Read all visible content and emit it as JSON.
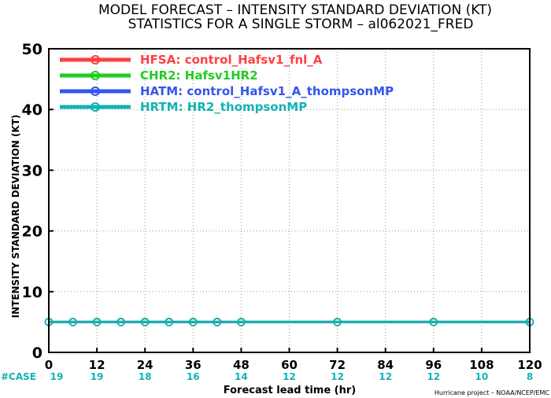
{
  "chart_data": {
    "type": "line",
    "title_line1": "MODEL FORECAST – INTENSITY STANDARD DEVIATION (KT)",
    "title_line2": "STATISTICS FOR A SINGLE STORM – al062021_FRED",
    "xlabel": "Forecast lead time (hr)",
    "ylabel": "INTENSITY STANDARD DEVIATION (KT)",
    "xlim": [
      0,
      120
    ],
    "ylim": [
      0,
      50
    ],
    "x_ticks": [
      0,
      12,
      24,
      36,
      48,
      60,
      72,
      84,
      96,
      108,
      120
    ],
    "y_ticks": [
      0,
      10,
      20,
      30,
      40,
      50
    ],
    "grid": true,
    "legend_position": "top-left",
    "series": [
      {
        "name": "HFSA: control_Hafsv1_fnl_A",
        "color": "#ff4040",
        "x": [
          0,
          6,
          12,
          18,
          24,
          30,
          36,
          42,
          48,
          72,
          96,
          120
        ],
        "values": [
          5,
          5,
          5,
          5,
          5,
          5,
          5,
          5,
          5,
          5,
          5,
          5
        ]
      },
      {
        "name": "CHR2: Hafsv1HR2",
        "color": "#22cc22",
        "x": [
          0,
          6,
          12,
          18,
          24,
          30,
          36,
          42,
          48,
          72,
          96,
          120
        ],
        "values": [
          5,
          5,
          5,
          5,
          5,
          5,
          5,
          5,
          5,
          5,
          5,
          5
        ]
      },
      {
        "name": "HATM: control_Hafsv1_A_thompsonMP",
        "color": "#3355ee",
        "x": [
          0,
          6,
          12,
          18,
          24,
          30,
          36,
          42,
          48,
          72,
          96,
          120
        ],
        "values": [
          5,
          5,
          5,
          5,
          5,
          5,
          5,
          5,
          5,
          5,
          5,
          5
        ]
      },
      {
        "name": "HRTM: HR2_thompsonMP",
        "color": "#11b3b3",
        "x": [
          0,
          6,
          12,
          18,
          24,
          30,
          36,
          42,
          48,
          72,
          96,
          120
        ],
        "values": [
          5,
          5,
          5,
          5,
          5,
          5,
          5,
          5,
          5,
          5,
          5,
          5
        ]
      }
    ],
    "case_label": "#CASE",
    "case_counts": [
      "19",
      "19",
      "18",
      "16",
      "14",
      "12",
      "12",
      "12",
      "12",
      "10",
      "8"
    ],
    "credit": "Hurricane project – NOAA/NCEP/EMC"
  }
}
